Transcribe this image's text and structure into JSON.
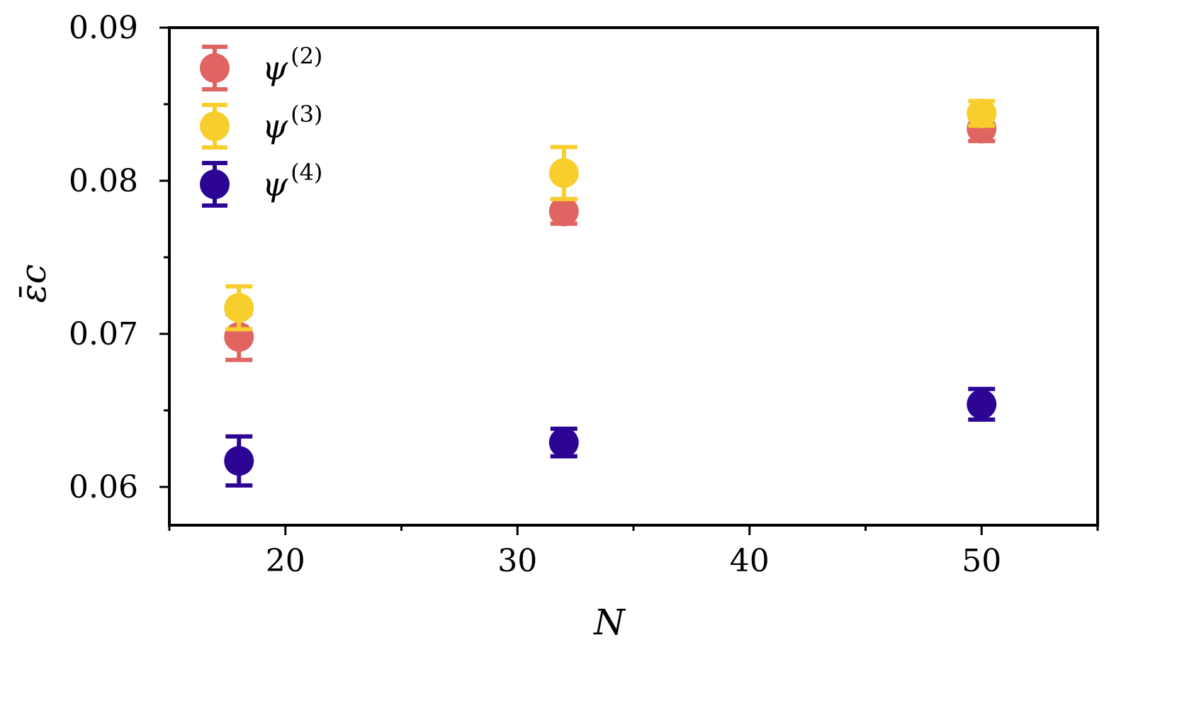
{
  "chart_data": {
    "type": "scatter",
    "xlabel": "N",
    "ylabel": "ε̄c",
    "xlim": [
      15,
      55
    ],
    "ylim": [
      0.0575,
      0.09
    ],
    "xticks": [
      20,
      30,
      40,
      50
    ],
    "xtick_labels": [
      "20",
      "30",
      "40",
      "50"
    ],
    "xminor_ticks": [
      15,
      25,
      35,
      45,
      55
    ],
    "yticks": [
      0.06,
      0.07,
      0.08,
      0.09
    ],
    "ytick_labels": [
      "0.06",
      "0.07",
      "0.08",
      "0.09"
    ],
    "yminor_ticks": [
      0.065,
      0.075,
      0.085
    ],
    "grid": false,
    "legend_position": "top-left",
    "series": [
      {
        "name": "ψ(2)",
        "name_base": "ψ",
        "name_sup": "(2)",
        "color": "#E06460",
        "x": [
          18,
          32,
          50
        ],
        "y": [
          0.0698,
          0.078,
          0.0834
        ],
        "yerr": [
          0.0015,
          0.0008,
          0.0008
        ]
      },
      {
        "name": "ψ(3)",
        "name_base": "ψ",
        "name_sup": "(3)",
        "color": "#F8CE2C",
        "x": [
          18,
          32,
          50
        ],
        "y": [
          0.0717,
          0.0805,
          0.0844
        ],
        "yerr": [
          0.0014,
          0.0017,
          0.0008
        ]
      },
      {
        "name": "ψ(4)",
        "name_base": "ψ",
        "name_sup": "(4)",
        "color": "#2C0594",
        "x": [
          18,
          32,
          50
        ],
        "y": [
          0.0617,
          0.0629,
          0.0654
        ],
        "yerr": [
          0.0016,
          0.0009,
          0.001
        ]
      }
    ]
  }
}
